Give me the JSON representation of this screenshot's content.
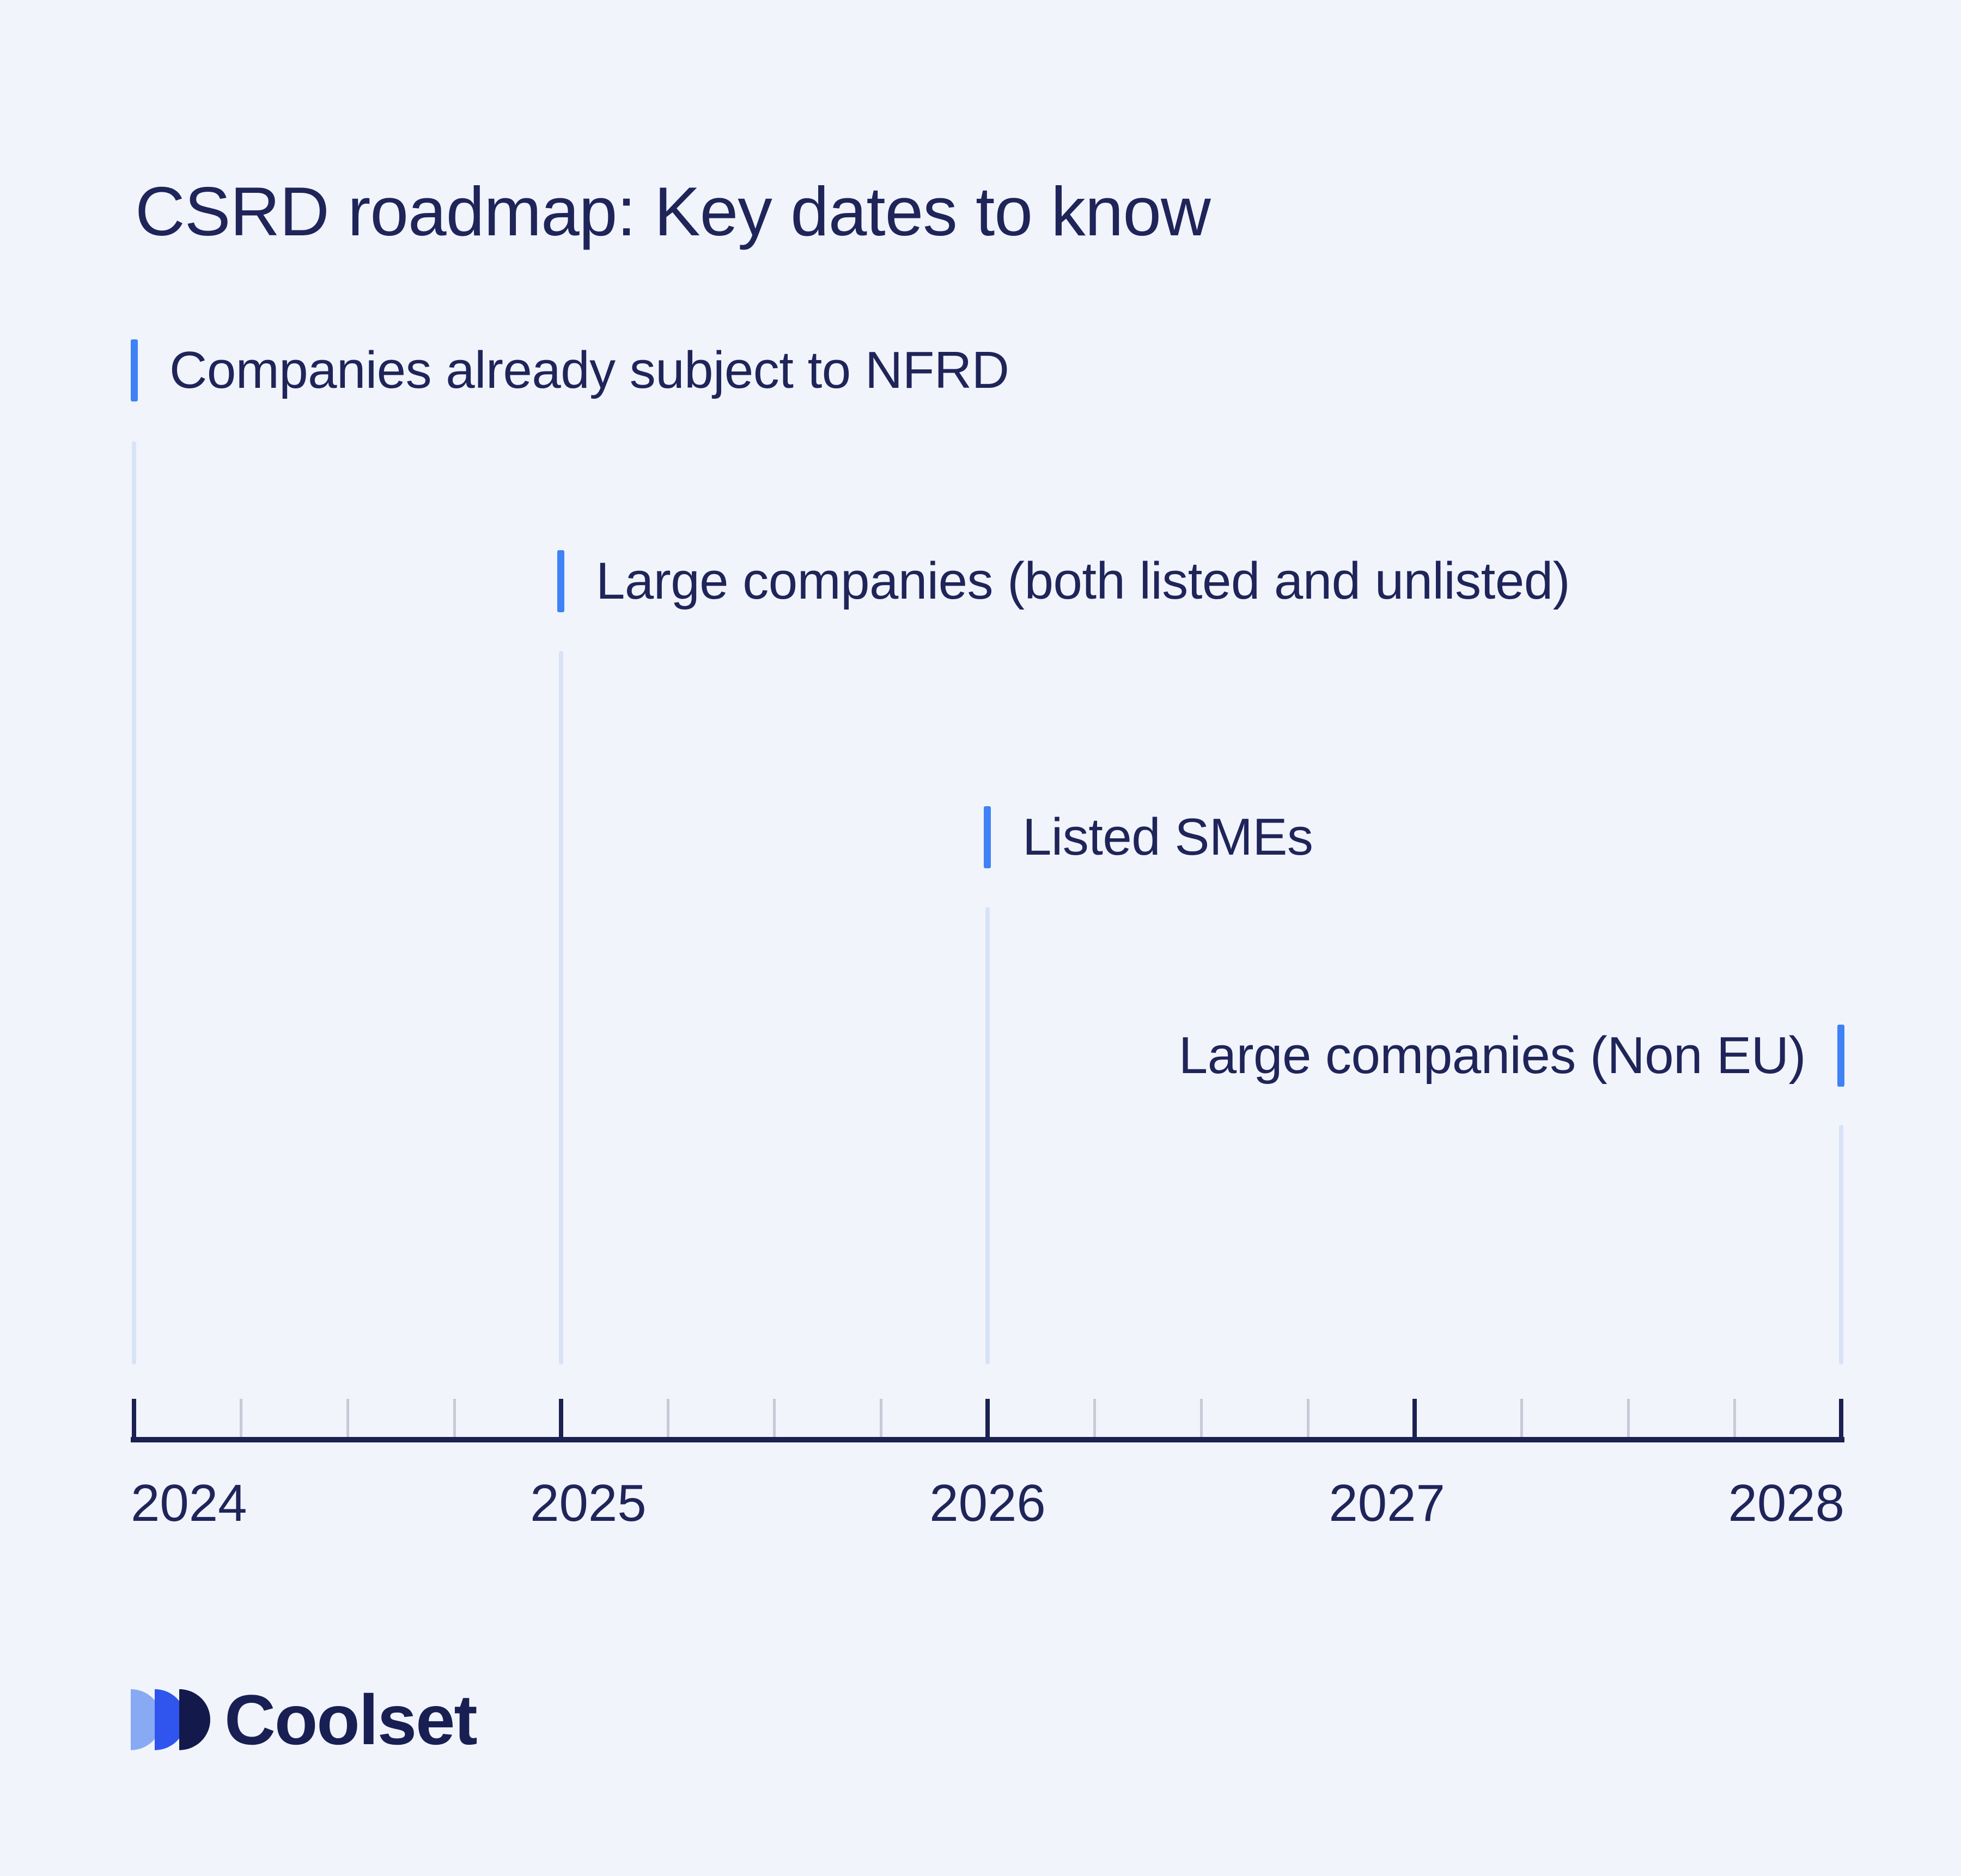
{
  "title": "CSRD roadmap: Key dates to know",
  "colors": {
    "background": "#f1f4fb",
    "text_navy": "#1f2459",
    "axis_navy": "#1b2150",
    "accent_blue": "#3e82f6",
    "guide_line_blue": "#d8e3f7",
    "minor_tick_gray": "#c7cad7",
    "logo_light_blue": "#88aaf3",
    "logo_mid_blue": "#2f55ee",
    "logo_navy": "#131a4b"
  },
  "chart_data": {
    "type": "timeline",
    "title": "CSRD roadmap: Key dates to know",
    "xlabel": "",
    "x_axis": {
      "range": [
        2024,
        2028
      ],
      "major_tick_labels": [
        "2024",
        "2025",
        "2026",
        "2027",
        "2028"
      ],
      "minor_ticks_per_interval": 3,
      "grid": false,
      "ticks_direction": "up"
    },
    "milestones": [
      {
        "label": "Companies already subject to NFRD",
        "year": 2024,
        "marker_side": "left"
      },
      {
        "label": "Large companies (both listed and unlisted)",
        "year": 2025,
        "marker_side": "left"
      },
      {
        "label": "Listed SMEs",
        "year": 2026,
        "marker_side": "left"
      },
      {
        "label": "Large companies (Non EU)",
        "year": 2028,
        "marker_side": "right"
      }
    ],
    "legend": null
  },
  "footer": {
    "brand_name": "Coolset"
  }
}
